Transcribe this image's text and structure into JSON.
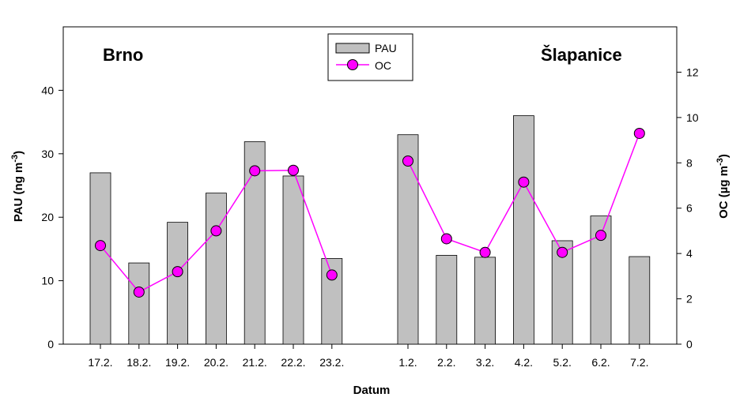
{
  "chart_data": {
    "type": "bar",
    "xlabel": "Datum",
    "ylabel_left": {
      "base": "PAU (ng m",
      "sup": "-3",
      "close": ")"
    },
    "ylabel_right": {
      "base": "OC (µg m",
      "sup": "-3",
      "close": ")"
    },
    "groups": [
      {
        "label": "Brno",
        "categories": [
          "17.2.",
          "18.2.",
          "19.2.",
          "20.2.",
          "21.2.",
          "22.2.",
          "23.2."
        ]
      },
      {
        "label": "Šlapanice",
        "categories": [
          "1.2.",
          "2.2.",
          "3.2.",
          "4.2.",
          "5.2.",
          "6.2.",
          "7.2."
        ]
      }
    ],
    "series": [
      {
        "name": "PAU",
        "type": "bar",
        "axis": "left",
        "color": "#c0c0c0",
        "values": [
          [
            27.0,
            12.8,
            19.2,
            23.8,
            31.9,
            26.5,
            13.5
          ],
          [
            33.0,
            14.0,
            13.7,
            36.0,
            16.3,
            20.2,
            13.8
          ]
        ]
      },
      {
        "name": "OC",
        "type": "line",
        "axis": "right",
        "color": "#ff00ff",
        "values": [
          [
            4.35,
            2.3,
            3.2,
            5.0,
            7.65,
            7.67,
            3.05
          ],
          [
            8.08,
            4.65,
            4.05,
            7.15,
            4.05,
            4.8,
            9.3
          ]
        ]
      }
    ],
    "ylim_left": [
      0,
      50
    ],
    "ylim_right": [
      0,
      14
    ],
    "yticks_left": [
      "0",
      "10",
      "20",
      "30",
      "40"
    ],
    "yticks_right": [
      "0",
      "2",
      "4",
      "6",
      "8",
      "10",
      "12"
    ],
    "legend_position": "top-center",
    "grid": false
  }
}
